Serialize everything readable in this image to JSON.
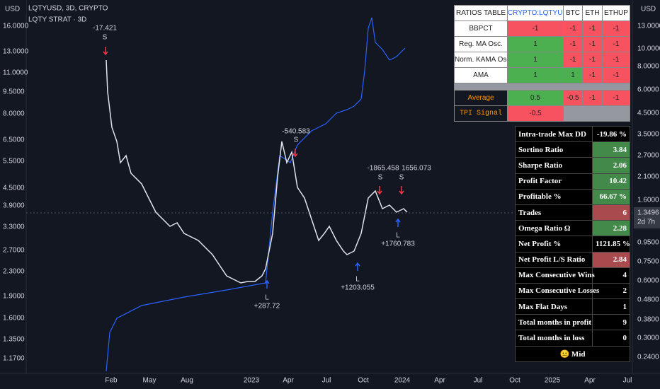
{
  "header": {
    "symbol": "LQTYUSD, 3D, CRYPTO",
    "strategy": "LQTY STRAT · 3D"
  },
  "left_axis": {
    "currency": "USD",
    "labels": [
      "16.0000",
      "13.0000",
      "11.0000",
      "9.5000",
      "8.0000",
      "6.5000",
      "5.5000",
      "4.5000",
      "3.9000",
      "3.3000",
      "2.7000",
      "2.3000",
      "1.9000",
      "1.6000",
      "1.3500",
      "1.1700"
    ]
  },
  "right_axis": {
    "currency": "USD",
    "labels": [
      "13.0000",
      "10.0000",
      "8.0000",
      "6.0000",
      "4.5000",
      "3.5000",
      "2.7000",
      "2.1000",
      "1.6000",
      "0.9500",
      "0.7500",
      "0.6000",
      "0.4800",
      "0.3800",
      "0.3000",
      "0.2400"
    ],
    "last_price": "1.3496",
    "countdown": "2d 7h"
  },
  "x_axis": {
    "labels": [
      "Feb",
      "May",
      "Aug",
      "2023",
      "Apr",
      "Jul",
      "Oct",
      "2024",
      "Apr",
      "Jul",
      "Oct",
      "2025",
      "Apr",
      "Jul"
    ]
  },
  "annotations": [
    "-17.421",
    "S",
    "-540.583",
    "S",
    "-1865.458",
    "1656.073",
    "S",
    "S",
    "L",
    "+287.72",
    "L",
    "+1203.055",
    "L",
    "+1760.783"
  ],
  "ratios_table": {
    "columns": [
      "RATIOS TABLE",
      "CRYPTO:LQTYUSD",
      "BTC",
      "ETH",
      "ETHUP"
    ],
    "rows": [
      {
        "label": "BBPCT",
        "cells": [
          -1,
          -1,
          -1,
          -1
        ]
      },
      {
        "label": "Reg. MA Osc.",
        "cells": [
          1,
          -1,
          -1,
          -1
        ]
      },
      {
        "label": "Norm. KAMA Osc.",
        "cells": [
          1,
          -1,
          -1,
          -1
        ]
      },
      {
        "label": "AMA",
        "cells": [
          1,
          1,
          -1,
          -1
        ]
      }
    ],
    "average": {
      "label": "Average",
      "cells": [
        0.5,
        -0.5,
        -1,
        -1
      ]
    },
    "tpi": {
      "label": "TPI Signal",
      "value": -0.5
    }
  },
  "stats_table": {
    "rows": [
      [
        "Intra-trade Max DD",
        "-19.86 %"
      ],
      [
        "Sortino Ratio",
        3.84
      ],
      [
        "Sharpe Ratio",
        2.06
      ],
      [
        "Profit Factor",
        10.42
      ],
      [
        "Profitable %",
        "66.67 %"
      ],
      [
        "Trades",
        6
      ],
      [
        "Omega Ratio Ω",
        2.28
      ],
      [
        "Net Profit %",
        "1121.85 %"
      ],
      [
        "Net Profit L/S Ratio",
        2.84
      ],
      [
        "Max Consecutive Wins",
        4
      ],
      [
        "Max Consecutive Losses",
        2
      ],
      [
        "Max Flat Days",
        1
      ],
      [
        "Total months in profit",
        9
      ],
      [
        "Total months in loss",
        0
      ]
    ],
    "rating": "😐 Mid"
  }
}
